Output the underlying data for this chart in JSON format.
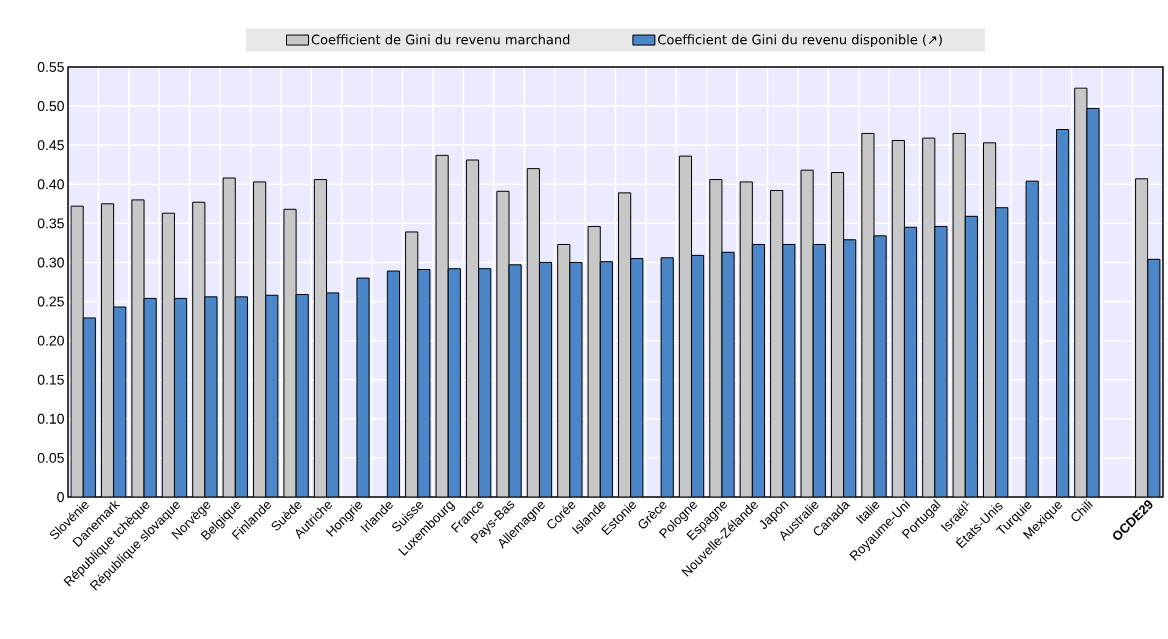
{
  "chart_data": {
    "type": "bar",
    "categories": [
      "Slovénie",
      "Danemark",
      "République tchèque",
      "République slovaque",
      "Norvège",
      "Belgique",
      "Finlande",
      "Suède",
      "Autriche",
      "Hongrie",
      "Irlande",
      "Suisse",
      "Luxembourg",
      "France",
      "Pays-Bas",
      "Allemagne",
      "Corée",
      "Islande",
      "Estonie",
      "Grèce",
      "Pologne",
      "Espagne",
      "Nouvelle-Zélande",
      "Japon",
      "Australie",
      "Canada",
      "Italie",
      "Royaume-Uni",
      "Portugal",
      "Israël$^{1}$",
      "États-Unis",
      "Turquie",
      "Mexique",
      "Chili",
      null,
      "OCDE29"
    ],
    "series": [
      {
        "name": "Coefficient de Gini du revenu marchand",
        "color": "#c8c8c8",
        "values": [
          0.372,
          0.375,
          0.38,
          0.363,
          0.377,
          0.408,
          0.403,
          0.368,
          0.406,
          null,
          null,
          0.339,
          0.437,
          0.431,
          0.391,
          0.42,
          0.323,
          0.346,
          0.389,
          null,
          0.436,
          0.406,
          0.403,
          0.392,
          0.418,
          0.415,
          0.465,
          0.456,
          0.459,
          0.465,
          0.453,
          null,
          null,
          0.523,
          null,
          0.407
        ]
      },
      {
        "name": "Coefficient de Gini du revenu disponible (↗)",
        "color": "#4a86c8",
        "values": [
          0.229,
          0.243,
          0.254,
          0.254,
          0.256,
          0.256,
          0.258,
          0.259,
          0.261,
          0.28,
          0.289,
          0.291,
          0.292,
          0.292,
          0.297,
          0.3,
          0.3,
          0.301,
          0.305,
          0.306,
          0.309,
          0.313,
          0.323,
          0.323,
          0.323,
          0.329,
          0.334,
          0.345,
          0.346,
          0.359,
          0.37,
          0.404,
          0.47,
          0.497,
          null,
          0.304
        ]
      }
    ],
    "ylim": [
      0,
      0.55
    ],
    "yticks": [
      0,
      0.05,
      {
        "value": 0.1,
        "label": "0.10"
      },
      0.15,
      {
        "value": 0.2,
        "label": "0.20"
      },
      0.25,
      {
        "value": 0.3,
        "label": "0.30"
      },
      0.35,
      {
        "value": 0.4,
        "label": "0.40"
      },
      0.45,
      {
        "value": 0.5,
        "label": "0.50"
      },
      0.55
    ],
    "grid": true,
    "legend": "top"
  }
}
